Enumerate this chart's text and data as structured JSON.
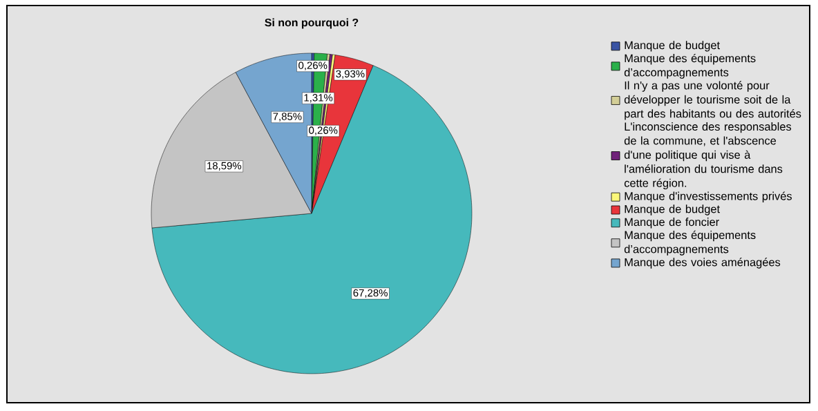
{
  "chart_data": {
    "type": "pie",
    "title": "Si non pourquoi ?",
    "categories": [
      "Manque de budget",
      "Manque des équipements d’accompagnements",
      "Il n'y a pas une volonté pour développer le tourisme soit de la part des habitants ou des autorités",
      "L'inconscience des responsables de la commune, et l'abscence d'une politique qui vise à l'amélioration du tourisme dans cette région.",
      "Manque d'investissements privés",
      "Manque de budget",
      "Manque de foncier",
      "Manque des équipements d’accompagnements",
      "Manque des voies aménagées"
    ],
    "values": [
      0.26,
      1.31,
      0.26,
      0.26,
      0.26,
      3.93,
      67.28,
      18.59,
      7.85
    ],
    "colors": [
      "#3953a4",
      "#2bb04a",
      "#d3ce97",
      "#70227a",
      "#fbf87a",
      "#e8353b",
      "#46b9bc",
      "#c4c4c4",
      "#75a5cf"
    ],
    "value_labels": [
      "0,26%",
      "1,31%",
      null,
      null,
      "0,26%",
      "3,93%",
      "67,28%",
      "18,59%",
      "7,85%"
    ],
    "legend": "right"
  }
}
